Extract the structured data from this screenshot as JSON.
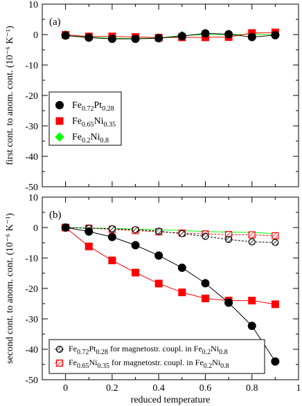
{
  "chart_data": [
    {
      "type": "line",
      "panel_label": "(a)",
      "xlabel": "",
      "ylabel": "first cont. to anom. cont. (10⁻⁶ K⁻¹)",
      "xlim": [
        -0.1,
        1.0
      ],
      "ylim": [
        -50,
        10
      ],
      "x_ticks": [
        0,
        0.2,
        0.4,
        0.6,
        0.8,
        1
      ],
      "x_tick_labels": [
        "0",
        "0.2",
        "0.4",
        "0.6",
        "0.8",
        "1"
      ],
      "y_ticks": [
        10,
        0,
        -10,
        -20,
        -30,
        -40,
        -50
      ],
      "y_tick_labels": [
        "10",
        "0",
        "-10",
        "-20",
        "-30",
        "-40",
        "-50"
      ],
      "show_x_tick_labels": false,
      "legend_position": "middle-left",
      "x": [
        0,
        0.1,
        0.2,
        0.3,
        0.4,
        0.5,
        0.6,
        0.7,
        0.8,
        0.9
      ],
      "series": [
        {
          "name": "Fe0.72Pt0.28",
          "color": "#000000",
          "marker": "circle",
          "values": [
            -0.3,
            -1.0,
            -1.4,
            -1.4,
            -1.2,
            -0.5,
            0.4,
            0.1,
            -0.8,
            -0.2
          ]
        },
        {
          "name": "Fe0.65Ni0.35",
          "color": "#ff0000",
          "marker": "square",
          "values": [
            -0.1,
            -0.6,
            -0.6,
            -0.8,
            -1.0,
            -0.9,
            -0.9,
            -0.8,
            0.5,
            0.7
          ]
        },
        {
          "name": "Fe0.2Ni0.8",
          "color": "#00ff00",
          "marker": "diamond",
          "values": [
            0.0,
            -0.9,
            -1.2,
            -1.3,
            -1.1,
            -0.3,
            0.0,
            0.0,
            0.1,
            0.0
          ]
        }
      ],
      "legend": [
        {
          "base1": "Fe",
          "sub1": "0.72",
          "base2": "Pt",
          "sub2": "0.28"
        },
        {
          "base1": "Fe",
          "sub1": "0.65",
          "base2": "Ni",
          "sub2": "0.35"
        },
        {
          "base1": "Fe",
          "sub1": "0.2",
          "base2": "Ni",
          "sub2": "0.8"
        }
      ]
    },
    {
      "type": "line",
      "panel_label": "(b)",
      "xlabel": "reduced temperature",
      "ylabel": "second cont. to anom. cont. (10⁻⁶ K⁻¹)",
      "xlim": [
        -0.1,
        1.0
      ],
      "ylim": [
        -50,
        10
      ],
      "x_ticks": [
        0,
        0.2,
        0.4,
        0.6,
        0.8,
        1
      ],
      "x_tick_labels": [
        "0",
        "0.2",
        "0.4",
        "0.6",
        "0.8",
        "1"
      ],
      "y_ticks": [
        10,
        0,
        -10,
        -20,
        -30,
        -40,
        -50
      ],
      "y_tick_labels": [
        "10",
        "0",
        "-10",
        "-20",
        "-30",
        "-40",
        "-50"
      ],
      "show_x_tick_labels": true,
      "legend_position": "bottom-left",
      "x": [
        0,
        0.1,
        0.2,
        0.3,
        0.4,
        0.5,
        0.6,
        0.7,
        0.8,
        0.9
      ],
      "series": [
        {
          "name": "Fe0.72Pt0.28",
          "color": "#000000",
          "marker": "circle",
          "values": [
            0.0,
            -1.3,
            -3.1,
            -5.8,
            -9.2,
            -13.2,
            -18.3,
            -24.7,
            -32.3,
            -44.0
          ]
        },
        {
          "name": "Fe0.65Ni0.35",
          "color": "#ff0000",
          "marker": "square",
          "values": [
            0.0,
            -6.2,
            -10.8,
            -14.8,
            -18.4,
            -21.3,
            -23.3,
            -24.0,
            -24.0,
            -25.2
          ]
        },
        {
          "name": "Fe0.2Ni0.8",
          "color": "#00ff00",
          "marker": "none",
          "values": [
            0.0,
            -0.2,
            -0.3,
            -0.5,
            -0.7,
            -1.0,
            -1.3,
            -1.5,
            -1.6,
            -2.0
          ]
        },
        {
          "name": "Fe0.72Pt0.28 for magnetostr. coupl. in Fe0.2Ni0.8",
          "color": "#000000",
          "marker": "hatched-circle",
          "dashed": true,
          "values": [
            0.0,
            -0.2,
            -0.4,
            -0.7,
            -1.2,
            -2.0,
            -2.9,
            -3.9,
            -4.7,
            -4.9
          ]
        },
        {
          "name": "Fe0.65Ni0.35 for magnetostr. coupl. in Fe0.2Ni0.8",
          "color": "#ff0000",
          "marker": "hatched-square",
          "dashed": true,
          "values": [
            0.0,
            -0.2,
            -0.6,
            -1.0,
            -1.4,
            -1.8,
            -2.1,
            -2.3,
            -2.4,
            -2.7
          ]
        }
      ],
      "legend": [
        {
          "base1": "Fe",
          "sub1": "0.72",
          "base2": "Pt",
          "sub2": "0.28",
          "rest": " for magnetostr. coupl. in Fe",
          "sub3": "0.2",
          "base3": "Ni",
          "sub4": "0.8"
        },
        {
          "base1": "Fe",
          "sub1": "0.65",
          "base2": "Ni",
          "sub2": "0.35",
          "rest": " for magnetostr. coupl. in Fe",
          "sub3": "0.2",
          "base3": "Ni",
          "sub4": "0.8"
        }
      ]
    }
  ]
}
